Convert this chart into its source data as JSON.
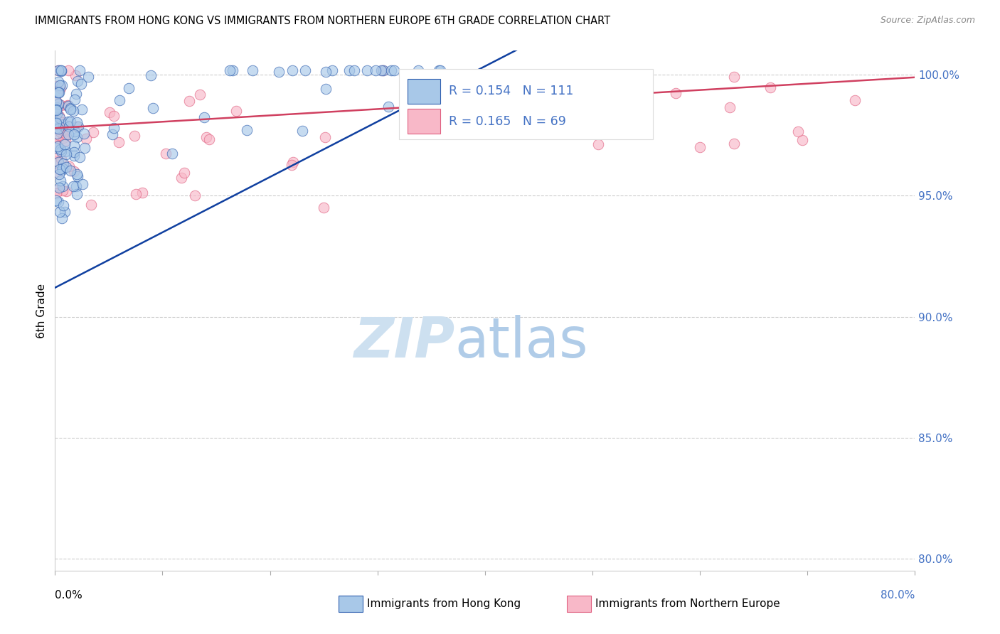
{
  "title": "IMMIGRANTS FROM HONG KONG VS IMMIGRANTS FROM NORTHERN EUROPE 6TH GRADE CORRELATION CHART",
  "source": "Source: ZipAtlas.com",
  "ylabel": "6th Grade",
  "ylabel_right_ticks": [
    "100.0%",
    "95.0%",
    "90.0%",
    "85.0%",
    "80.0%"
  ],
  "ylabel_right_values": [
    1.0,
    0.95,
    0.9,
    0.85,
    0.8
  ],
  "xmin": 0.0,
  "xmax": 0.8,
  "ymin": 0.795,
  "ymax": 1.01,
  "legend_label_hk": "Immigrants from Hong Kong",
  "legend_label_ne": "Immigrants from Northern Europe",
  "R_hk": 0.154,
  "N_hk": 111,
  "R_ne": 0.165,
  "N_ne": 69,
  "color_hk_fill": "#a8c8e8",
  "color_ne_fill": "#f8b8c8",
  "color_hk_edge": "#3060b0",
  "color_ne_edge": "#e06080",
  "color_hk_line": "#1040a0",
  "color_ne_line": "#d04060",
  "color_axis_right": "#4472c4",
  "hk_trend_x0": 0.0,
  "hk_trend_y0": 0.912,
  "hk_trend_x1": 0.38,
  "hk_trend_y1": 0.999,
  "ne_trend_x0": 0.0,
  "ne_trend_y0": 0.978,
  "ne_trend_x1": 0.8,
  "ne_trend_y1": 0.999
}
